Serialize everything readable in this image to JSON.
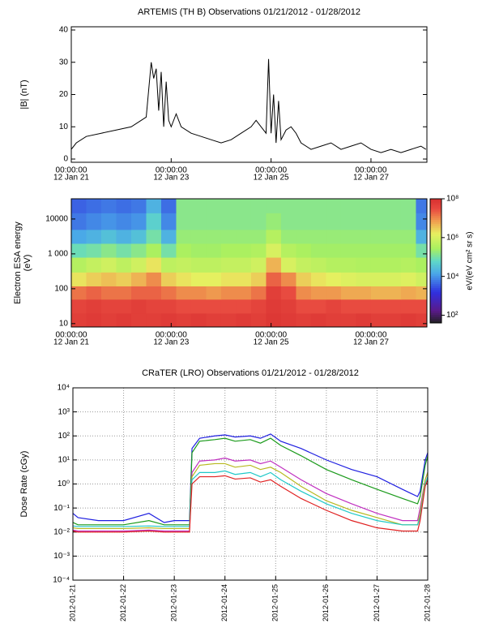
{
  "chart_data": [
    {
      "type": "line",
      "title": "ARTEMIS (TH B) Observations 01/21/2012 - 01/28/2012",
      "y_label": "|B| (nT)",
      "x": [
        0,
        0.1,
        0.3,
        0.6,
        0.9,
        1.2,
        1.4,
        1.5,
        1.6,
        1.65,
        1.7,
        1.75,
        1.8,
        1.85,
        1.9,
        1.95,
        2.0,
        2.1,
        2.2,
        2.4,
        2.6,
        2.8,
        3.0,
        3.2,
        3.4,
        3.6,
        3.7,
        3.8,
        3.9,
        3.95,
        4.0,
        4.05,
        4.1,
        4.15,
        4.2,
        4.3,
        4.4,
        4.5,
        4.6,
        4.8,
        5.0,
        5.2,
        5.4,
        5.6,
        5.8,
        6.0,
        6.2,
        6.4,
        6.6,
        6.8,
        7.0,
        7.1
      ],
      "values": [
        3,
        5,
        7,
        8,
        9,
        10,
        12,
        13,
        30,
        25,
        28,
        15,
        27,
        10,
        24,
        12,
        10,
        14,
        10,
        8,
        7,
        6,
        5,
        6,
        8,
        10,
        12,
        10,
        8,
        31,
        8,
        20,
        5,
        18,
        6,
        9,
        10,
        8,
        5,
        3,
        4,
        5,
        3,
        4,
        5,
        3,
        2,
        3,
        2,
        3,
        4,
        3
      ],
      "color": "#000000",
      "xlim": [
        0,
        7.12
      ],
      "xticks": [
        {
          "value": 0,
          "label": "12 Jan 21",
          "time": "00:00:00"
        },
        {
          "value": 2,
          "label": "12 Jan 23",
          "time": "00:00:00"
        },
        {
          "value": 4,
          "label": "12 Jan 25",
          "time": "00:00:00"
        },
        {
          "value": 6,
          "label": "12 Jan 27",
          "time": "00:00:00"
        }
      ],
      "ylim": [
        -1,
        41
      ],
      "yticks": [
        0,
        10,
        20,
        30,
        40
      ]
    },
    {
      "type": "heatmap",
      "y_label": [
        "Electron ESA energy",
        "(eV)"
      ],
      "colorbar_label": "eV/(eV cm² sr s)",
      "log_y": true,
      "xlim": [
        0,
        7.12
      ],
      "xticks": [
        {
          "value": 0,
          "label": "12 Jan 21",
          "time": "00:00:00"
        },
        {
          "value": 2,
          "label": "12 Jan 23",
          "time": "00:00:00"
        },
        {
          "value": 4,
          "label": "12 Jan 25",
          "time": "00:00:00"
        },
        {
          "value": 6,
          "label": "12 Jan 27",
          "time": "00:00:00"
        }
      ],
      "ylim": [
        8,
        38000
      ],
      "yticks": [
        10,
        100,
        {
          "value": 1000,
          "label": "1 000"
        },
        10000
      ],
      "xedges": [
        0,
        0.3,
        0.6,
        0.9,
        1.2,
        1.5,
        1.8,
        2.1,
        2.4,
        2.7,
        3.0,
        3.3,
        3.6,
        3.9,
        4.2,
        4.5,
        4.8,
        5.1,
        5.4,
        5.7,
        6.0,
        6.3,
        6.6,
        6.9,
        7.12
      ],
      "yedges": [
        8,
        20,
        50,
        120,
        300,
        800,
        2000,
        5000,
        15000,
        38000
      ],
      "z": [
        [
          50000000.0,
          60000000.0,
          50000000.0,
          60000000.0,
          50000000.0,
          50000000.0,
          60000000.0,
          50000000.0,
          60000000.0,
          50000000.0,
          50000000.0,
          60000000.0,
          50000000.0,
          70000000.0,
          60000000.0,
          50000000.0,
          60000000.0,
          50000000.0,
          50000000.0,
          60000000.0,
          50000000.0,
          50000000.0,
          60000000.0,
          50000000.0
        ],
        [
          40000000.0,
          50000000.0,
          40000000.0,
          40000000.0,
          50000000.0,
          40000000.0,
          40000000.0,
          30000000.0,
          30000000.0,
          30000000.0,
          30000000.0,
          30000000.0,
          40000000.0,
          60000000.0,
          50000000.0,
          30000000.0,
          30000000.0,
          40000000.0,
          30000000.0,
          30000000.0,
          30000000.0,
          30000000.0,
          30000000.0,
          30000000.0
        ],
        [
          15000000.0,
          20000000.0,
          15000000.0,
          15000000.0,
          20000000.0,
          20000000.0,
          15000000.0,
          10000000.0,
          10000000.0,
          8000000.0,
          10000000.0,
          10000000.0,
          15000000.0,
          50000000.0,
          30000000.0,
          10000000.0,
          8000000.0,
          8000000.0,
          6000000.0,
          6000000.0,
          5000000.0,
          5000000.0,
          6000000.0,
          5000000.0
        ],
        [
          2000000.0,
          3000000.0,
          4000000.0,
          3000000.0,
          5000000.0,
          10000000.0,
          3000000.0,
          2000000.0,
          1500000.0,
          1500000.0,
          2000000.0,
          2000000.0,
          3000000.0,
          20000000.0,
          10000000.0,
          3000000.0,
          2000000.0,
          1500000.0,
          1200000.0,
          1000000.0,
          1000000.0,
          1000000.0,
          1200000.0,
          800000.0
        ],
        [
          400000.0,
          600000.0,
          800000.0,
          500000.0,
          800000.0,
          2000000.0,
          500000.0,
          600000.0,
          500000.0,
          500000.0,
          600000.0,
          600000.0,
          800000.0,
          5000000.0,
          1000000.0,
          600000.0,
          500000.0,
          400000.0,
          400000.0,
          350000.0,
          350000.0,
          350000.0,
          400000.0,
          300000.0
        ],
        [
          80000.0,
          100000.0,
          150000.0,
          100000.0,
          150000.0,
          300000.0,
          100000.0,
          300000.0,
          250000.0,
          250000.0,
          300000.0,
          300000.0,
          350000.0,
          1000000.0,
          400000.0,
          300000.0,
          250000.0,
          250000.0,
          250000.0,
          250000.0,
          250000.0,
          250000.0,
          250000.0,
          100000.0
        ],
        [
          15000.0,
          20000.0,
          30000.0,
          20000.0,
          30000.0,
          100000.0,
          20000.0,
          200000.0,
          200000.0,
          200000.0,
          200000.0,
          200000.0,
          200000.0,
          400000.0,
          200000.0,
          200000.0,
          200000.0,
          200000.0,
          200000.0,
          200000.0,
          200000.0,
          200000.0,
          200000.0,
          20000.0
        ],
        [
          6000.0,
          8000.0,
          10000.0,
          8000.0,
          10000.0,
          50000.0,
          8000.0,
          150000.0,
          150000.0,
          150000.0,
          150000.0,
          150000.0,
          150000.0,
          200000.0,
          150000.0,
          150000.0,
          150000.0,
          150000.0,
          150000.0,
          150000.0,
          150000.0,
          150000.0,
          150000.0,
          8000.0
        ],
        [
          4000.0,
          5000.0,
          6000.0,
          5000.0,
          6000.0,
          20000.0,
          5000.0,
          150000.0,
          150000.0,
          150000.0,
          150000.0,
          150000.0,
          150000.0,
          150000.0,
          150000.0,
          150000.0,
          150000.0,
          150000.0,
          150000.0,
          150000.0,
          150000.0,
          150000.0,
          150000.0,
          6000.0
        ]
      ],
      "zlim": [
        40,
        100000000.0
      ],
      "zticks": [
        {
          "value": 100,
          "label": "10²"
        },
        {
          "value": 10000,
          "label": "10⁴"
        },
        {
          "value": 1000000,
          "label": "10⁶"
        },
        {
          "value": 100000000,
          "label": "10⁸"
        }
      ]
    },
    {
      "type": "line",
      "title": "CRaTER (LRO) Observations 01/21/2012 - 01/28/2012",
      "y_label": "Dose Rate (cGy)",
      "log_y": true,
      "grid": true,
      "x": [
        0,
        0.1,
        0.5,
        1,
        1.5,
        1.8,
        2,
        2.2,
        2.3,
        2.35,
        2.5,
        2.8,
        3,
        3.2,
        3.5,
        3.7,
        3.9,
        4.1,
        4.5,
        5,
        5.5,
        6,
        6.5,
        6.8,
        6.85,
        6.95,
        7
      ],
      "series": [
        {
          "color": "#1f1fe0",
          "values": [
            0.06,
            0.04,
            0.03,
            0.03,
            0.06,
            0.025,
            0.03,
            0.03,
            0.03,
            30,
            80,
            100,
            110,
            90,
            100,
            80,
            120,
            60,
            30,
            10,
            4,
            2,
            0.6,
            0.3,
            0.5,
            10,
            20
          ]
        },
        {
          "color": "#1a9a1a",
          "values": [
            0.025,
            0.02,
            0.02,
            0.02,
            0.03,
            0.02,
            0.02,
            0.02,
            0.02,
            20,
            60,
            70,
            80,
            60,
            70,
            50,
            80,
            40,
            15,
            4,
            1.5,
            0.6,
            0.25,
            0.15,
            0.3,
            6,
            15
          ]
        },
        {
          "color": "#c030c0",
          "values": [
            0.012,
            0.011,
            0.011,
            0.011,
            0.012,
            0.011,
            0.011,
            0.011,
            0.011,
            3,
            9,
            10,
            12,
            9,
            10,
            7,
            9,
            5,
            1.5,
            0.4,
            0.15,
            0.06,
            0.03,
            0.03,
            0.1,
            1.5,
            3
          ]
        },
        {
          "color": "#b8b820",
          "values": [
            0.015,
            0.014,
            0.014,
            0.014,
            0.015,
            0.014,
            0.014,
            0.014,
            0.014,
            2,
            6,
            7,
            7,
            5,
            6,
            4,
            5,
            3,
            0.8,
            0.2,
            0.08,
            0.04,
            0.02,
            0.02,
            0.06,
            1.5,
            3
          ]
        },
        {
          "color": "#20c8c8",
          "values": [
            0.018,
            0.017,
            0.017,
            0.017,
            0.018,
            0.017,
            0.017,
            0.017,
            0.017,
            1.5,
            3,
            3,
            3.5,
            2.5,
            3,
            2,
            3,
            1.5,
            0.5,
            0.15,
            0.06,
            0.03,
            0.02,
            0.02,
            0.04,
            1,
            2
          ]
        },
        {
          "color": "#e02020",
          "values": [
            0.011,
            0.01,
            0.01,
            0.01,
            0.011,
            0.01,
            0.01,
            0.01,
            0.01,
            1,
            2,
            2,
            2.2,
            1.6,
            1.8,
            1.2,
            1.5,
            0.8,
            0.25,
            0.08,
            0.03,
            0.015,
            0.011,
            0.011,
            0.03,
            0.8,
            1.5
          ]
        }
      ],
      "xlim": [
        0,
        7
      ],
      "xticks": [
        {
          "value": 0,
          "label": "2012-01-21"
        },
        {
          "value": 1,
          "label": "2012-01-22"
        },
        {
          "value": 2,
          "label": "2012-01-23"
        },
        {
          "value": 3,
          "label": "2012-01-24"
        },
        {
          "value": 4,
          "label": "2012-01-25"
        },
        {
          "value": 5,
          "label": "2012-01-26"
        },
        {
          "value": 6,
          "label": "2012-01-27"
        },
        {
          "value": 7,
          "label": "2012-01-28"
        }
      ],
      "ylim": [
        0.0001,
        10000
      ],
      "yticks": [
        {
          "value": 0.0001,
          "label": "10⁻⁴"
        },
        {
          "value": 0.001,
          "label": "10⁻³"
        },
        {
          "value": 0.01,
          "label": "10⁻²"
        },
        {
          "value": 0.1,
          "label": "10⁻¹"
        },
        {
          "value": 1,
          "label": "10⁰"
        },
        {
          "value": 10,
          "label": "10¹"
        },
        {
          "value": 100,
          "label": "10²"
        },
        {
          "value": 1000,
          "label": "10³"
        },
        {
          "value": 10000,
          "label": "10⁴"
        }
      ]
    }
  ]
}
